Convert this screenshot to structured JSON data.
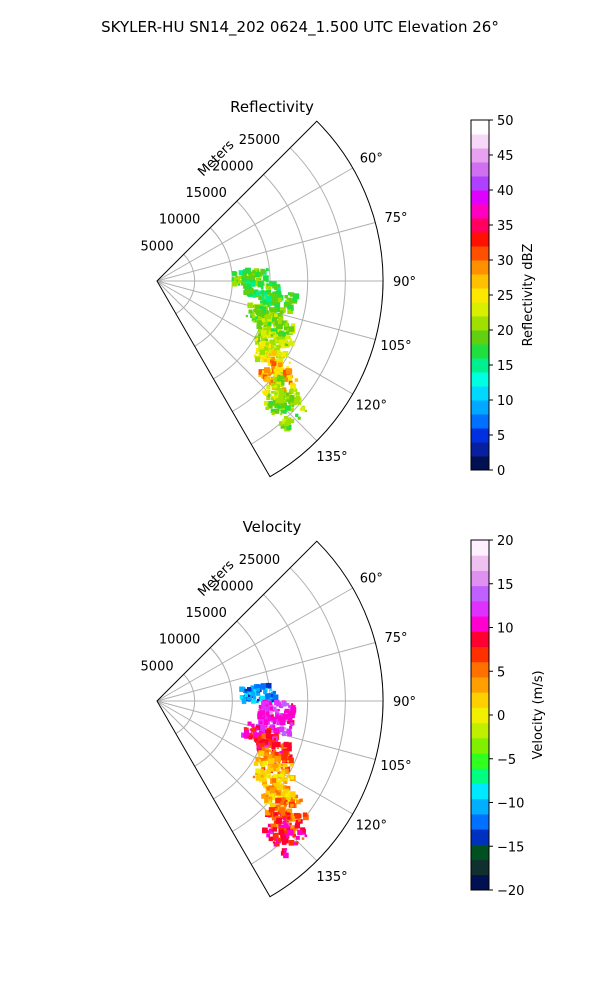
{
  "figure_title": "SKYLER-HU  SN14_202  0624_1.500 UTC Elevation 26°",
  "chart_data": [
    {
      "type": "heatmap",
      "title": "Reflectivity",
      "projection": "polar-sector",
      "theta_range_deg": [
        45,
        150
      ],
      "range_max_m": 30000,
      "r_ticks": [
        5000,
        10000,
        15000,
        20000,
        25000
      ],
      "r_tick_labels": [
        "5000",
        "10000",
        "15000",
        "20000",
        "25000"
      ],
      "r_label": "Meters",
      "theta_ticks_deg": [
        60,
        75,
        90,
        105,
        120,
        135
      ],
      "theta_tick_labels": [
        "60°",
        "75°",
        "90°",
        "105°",
        "120°",
        "135°"
      ],
      "grid": true,
      "colorbar": {
        "label": "Reflectivity dBZ",
        "range": [
          0,
          50
        ],
        "ticks": [
          "0",
          "5",
          "10",
          "15",
          "20",
          "25",
          "30",
          "35",
          "40",
          "45",
          "50"
        ],
        "colors": [
          "#001050",
          "#0820a0",
          "#0030e0",
          "#0070ff",
          "#00a8ff",
          "#00d8ff",
          "#00ffe0",
          "#00f090",
          "#20e040",
          "#60d010",
          "#a0e000",
          "#d8f000",
          "#ffe800",
          "#ffc000",
          "#ff9000",
          "#ff5000",
          "#ff1000",
          "#ff0060",
          "#ff00c0",
          "#e000ff",
          "#b040ff",
          "#d070f0",
          "#e8a0f0",
          "#f8d8f8",
          "#ffffff"
        ]
      },
      "field_values": [
        {
          "theta": 88,
          "r": 12500,
          "value": 18
        },
        {
          "theta": 95,
          "r": 14000,
          "value": 17
        },
        {
          "theta": 100,
          "r": 16500,
          "value": 18
        },
        {
          "theta": 108,
          "r": 15000,
          "value": 19
        },
        {
          "theta": 112,
          "r": 17000,
          "value": 20
        },
        {
          "theta": 118,
          "r": 17500,
          "value": 22
        },
        {
          "theta": 124,
          "r": 18500,
          "value": 24
        },
        {
          "theta": 128,
          "r": 20500,
          "value": 28
        },
        {
          "theta": 132,
          "r": 22500,
          "value": 22
        },
        {
          "theta": 135,
          "r": 24000,
          "value": 20
        }
      ]
    },
    {
      "type": "heatmap",
      "title": "Velocity",
      "projection": "polar-sector",
      "theta_range_deg": [
        45,
        150
      ],
      "range_max_m": 30000,
      "r_ticks": [
        5000,
        10000,
        15000,
        20000,
        25000
      ],
      "r_tick_labels": [
        "5000",
        "10000",
        "15000",
        "20000",
        "25000"
      ],
      "r_label": "Meters",
      "theta_ticks_deg": [
        60,
        75,
        90,
        105,
        120,
        135
      ],
      "theta_tick_labels": [
        "60°",
        "75°",
        "90°",
        "105°",
        "120°",
        "135°"
      ],
      "grid": true,
      "colorbar": {
        "label": "Velocity (m/s)",
        "range": [
          -20,
          20
        ],
        "ticks": [
          "−20",
          "−15",
          "−10",
          "−5",
          "0",
          "5",
          "10",
          "15",
          "20"
        ],
        "colors": [
          "#001050",
          "#103030",
          "#005020",
          "#0030c0",
          "#0070ff",
          "#00b0ff",
          "#00e8ff",
          "#00ff80",
          "#30ff20",
          "#80f000",
          "#c0f000",
          "#f0f000",
          "#ffd000",
          "#ffa000",
          "#ff7000",
          "#ff3000",
          "#ff0030",
          "#ff00d0",
          "#e030ff",
          "#c060ff",
          "#e090f0",
          "#f0c0f0",
          "#fff0ff"
        ]
      },
      "field_values": [
        {
          "theta": 86,
          "r": 13500,
          "value": -12
        },
        {
          "theta": 95,
          "r": 16000,
          "value": 12
        },
        {
          "theta": 100,
          "r": 16000,
          "value": 13
        },
        {
          "theta": 108,
          "r": 14500,
          "value": 10
        },
        {
          "theta": 112,
          "r": 17000,
          "value": 8
        },
        {
          "theta": 118,
          "r": 17500,
          "value": 4
        },
        {
          "theta": 124,
          "r": 18500,
          "value": 2
        },
        {
          "theta": 128,
          "r": 21000,
          "value": 3
        },
        {
          "theta": 132,
          "r": 23000,
          "value": 6
        },
        {
          "theta": 136,
          "r": 24500,
          "value": 9
        }
      ]
    }
  ]
}
